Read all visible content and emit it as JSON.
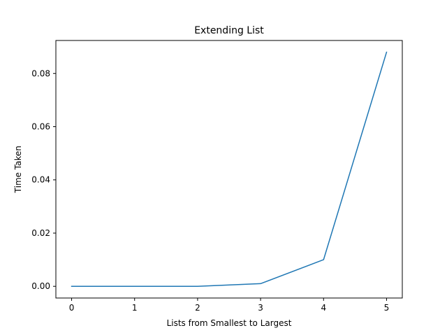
{
  "chart_data": {
    "type": "line",
    "title": "Extending List",
    "xlabel": "Lists from Smallest to Largest",
    "ylabel": "Time Taken",
    "x": [
      0,
      1,
      2,
      3,
      4,
      5
    ],
    "series": [
      {
        "values": [
          0.0,
          0.0,
          0.0,
          0.001,
          0.01,
          0.088
        ],
        "color": "#1f77b4"
      }
    ],
    "xticks": [
      "0",
      "1",
      "2",
      "3",
      "4",
      "5"
    ],
    "yticks": [
      "0.00",
      "0.02",
      "0.04",
      "0.06",
      "0.08"
    ],
    "xlim": [
      -0.25,
      5.25
    ],
    "ylim": [
      -0.0044,
      0.0924
    ],
    "grid": false,
    "legend": "none"
  }
}
